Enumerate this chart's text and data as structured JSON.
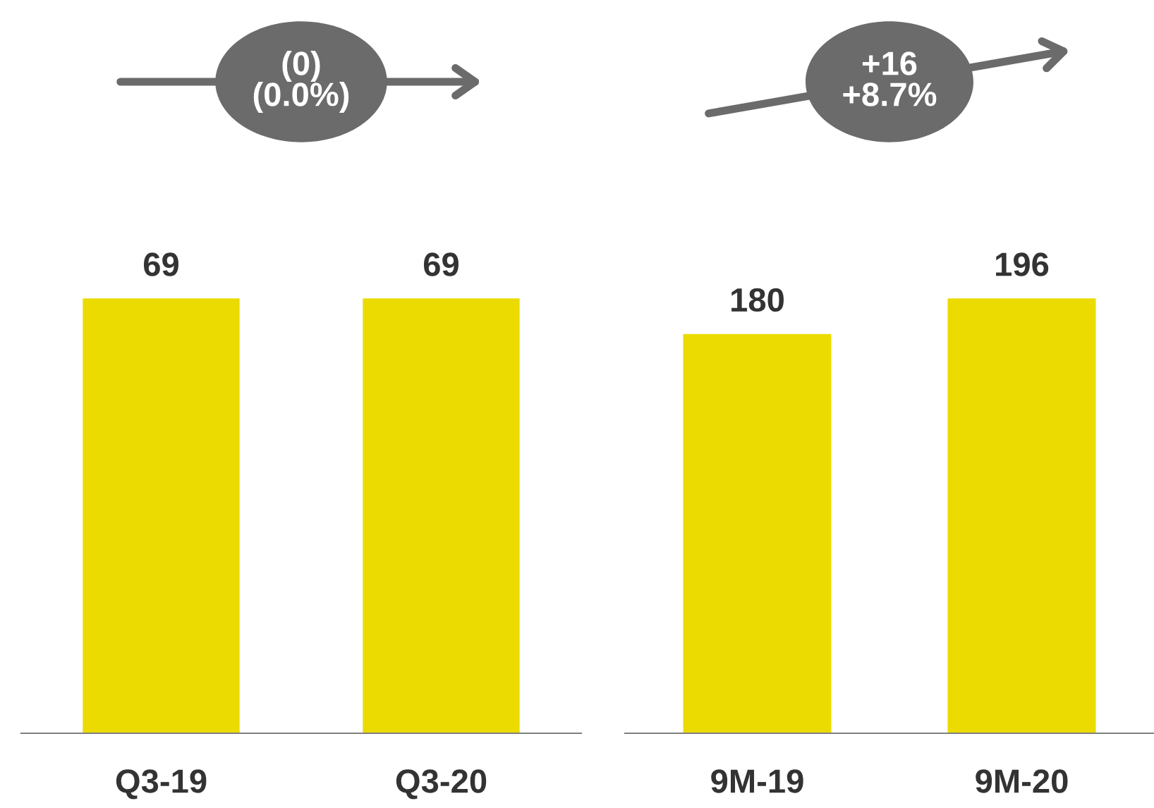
{
  "chart_data": [
    {
      "type": "bar",
      "categories": [
        "Q3-19",
        "Q3-20"
      ],
      "values": [
        69,
        69
      ],
      "color": "#ebdb00",
      "data_labels": true,
      "annotations": [
        "(0)\n(0.0%)"
      ]
    },
    {
      "type": "bar",
      "categories": [
        "9M-19",
        "9M-20"
      ],
      "values": [
        180,
        196
      ],
      "color": "#ebdb00",
      "data_labels": true,
      "annotations": [
        "+16\n+8.7%"
      ]
    }
  ]
}
